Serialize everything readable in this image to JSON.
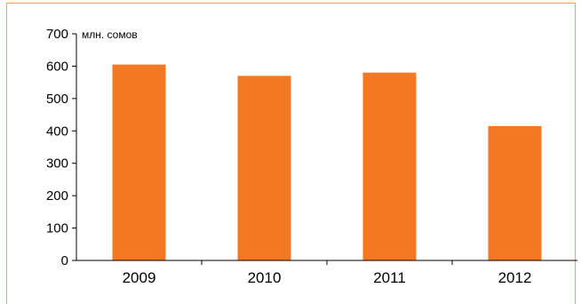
{
  "chart_data": {
    "type": "bar",
    "title": "",
    "xlabel": "",
    "ylabel": "",
    "unit_label": "млн. сомов",
    "categories": [
      "2009",
      "2010",
      "2011",
      "2012"
    ],
    "values": [
      605,
      570,
      580,
      415
    ],
    "ylim": [
      0,
      700
    ],
    "yticks": [
      "0",
      "100",
      "200",
      "300",
      "400",
      "500",
      "600",
      "700"
    ],
    "grid": false,
    "legend": "none",
    "bar_color": "#f47722",
    "frame_color": "#f0a060"
  }
}
